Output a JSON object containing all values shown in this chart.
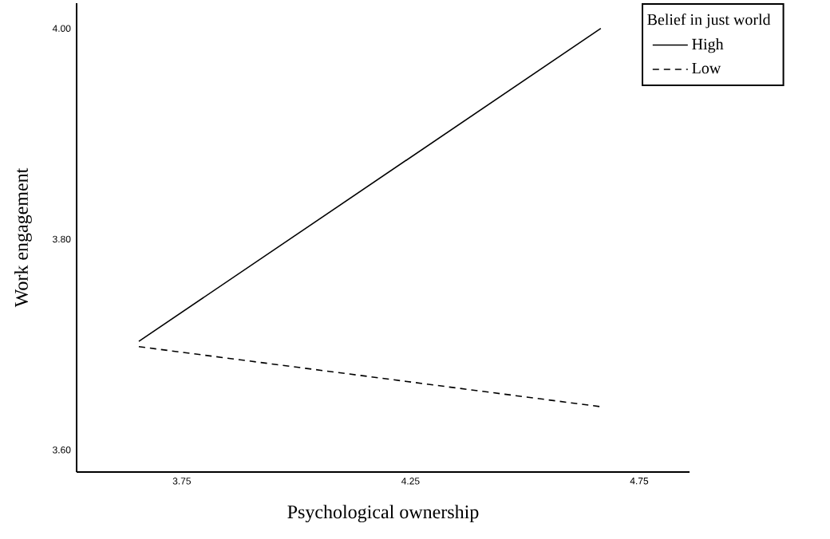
{
  "chart_data": {
    "type": "line",
    "xlabel": "Psychological ownership",
    "ylabel": "Work engagement",
    "legend_title": "Belief in just world",
    "legend": "top right",
    "xlim": [
      3.52,
      4.86
    ],
    "ylim": [
      3.579,
      4.024
    ],
    "xticks": [
      3.75,
      4.25,
      4.75
    ],
    "yticks": [
      {
        "value": 3.6,
        "label": "3.60"
      },
      {
        "value": 3.8,
        "label": "3.80"
      },
      {
        "value": 4.0,
        "label": "4.00"
      }
    ],
    "grid": false,
    "marker": "none",
    "x": [
      3.656,
      4.666
    ],
    "series": [
      {
        "name": "High",
        "color": "#000000",
        "line_style": "solid",
        "values": [
          3.703,
          4.0
        ]
      },
      {
        "name": "Low",
        "color": "#000000",
        "line_style": "dashed",
        "values": [
          3.698,
          3.641
        ]
      }
    ]
  }
}
